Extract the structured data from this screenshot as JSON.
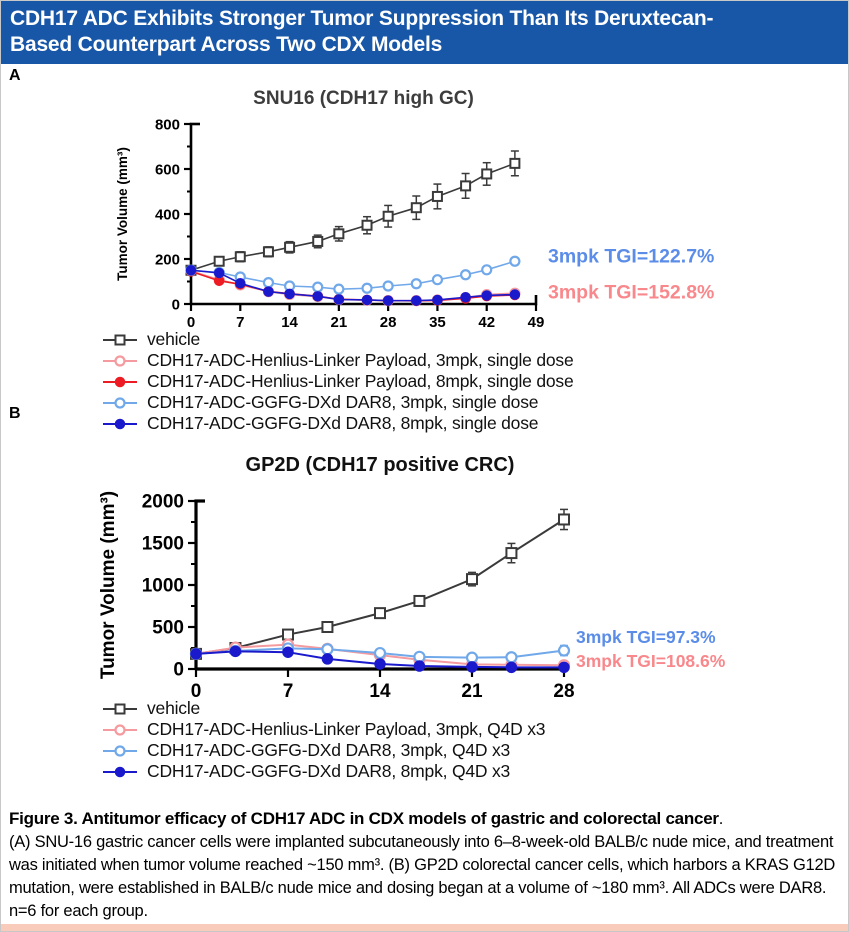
{
  "header": {
    "title_lines": [
      "CDH17 ADC Exhibits Stronger Tumor Suppression Than Its Deruxtecan-",
      "Based Counterpart Across Two CDX Models"
    ],
    "bg_color": "#1857a8",
    "text_color": "#ffffff"
  },
  "panel_labels": {
    "a": "A",
    "b": "B"
  },
  "chart_data": [
    {
      "type": "line",
      "panel": "A",
      "title": "SNU16 (CDH17 high GC)",
      "ylabel": "Tumor Volume (mm³)",
      "xlabel": "",
      "xlim": [
        0,
        49
      ],
      "ylim": [
        0,
        800
      ],
      "xticks": [
        0,
        7,
        14,
        21,
        28,
        35,
        42,
        49
      ],
      "yticks": [
        0,
        200,
        400,
        600,
        800
      ],
      "y_minor_step": 100,
      "grid": false,
      "legend_position": "below",
      "x": [
        0,
        4,
        7,
        11,
        14,
        18,
        21,
        25,
        28,
        32,
        35,
        39,
        42,
        46
      ],
      "series": [
        {
          "name": "vehicle",
          "marker": "square-open",
          "color": "#3a3a3a",
          "values": [
            150,
            190,
            210,
            232,
            252,
            278,
            312,
            350,
            390,
            428,
            478,
            525,
            578,
            625
          ],
          "err": [
            15,
            20,
            22,
            22,
            25,
            28,
            32,
            38,
            48,
            52,
            55,
            55,
            50,
            55
          ]
        },
        {
          "name": "CDH17-ADC-Henlius-Linker Payload, 3mpk, single dose",
          "marker": "circle-open",
          "color": "#f59a9e",
          "values": [
            148,
            108,
            85,
            55,
            42,
            33,
            20,
            17,
            15,
            15,
            18,
            28,
            42,
            48
          ],
          "err": [
            10,
            8,
            8,
            6,
            5,
            4,
            3,
            3,
            3,
            3,
            3,
            4,
            6,
            8
          ]
        },
        {
          "name": "CDH17-ADC-Henlius-Linker Payload, 8mpk, single dose",
          "marker": "circle-filled",
          "color": "#ed1c24",
          "values": [
            145,
            103,
            88,
            56,
            46,
            35,
            21,
            18,
            15,
            14,
            16,
            25,
            35,
            40
          ],
          "err": [
            10,
            8,
            8,
            6,
            5,
            4,
            3,
            3,
            3,
            3,
            3,
            4,
            5,
            6
          ]
        },
        {
          "name": "CDH17-ADC-GGFG-DXd DAR8, 3mpk, single dose",
          "marker": "circle-open",
          "color": "#70a8ea",
          "values": [
            150,
            140,
            120,
            95,
            80,
            75,
            66,
            70,
            80,
            90,
            108,
            130,
            152,
            190
          ],
          "err": [
            10,
            10,
            10,
            8,
            8,
            8,
            8,
            8,
            8,
            8,
            10,
            12,
            12,
            14
          ]
        },
        {
          "name": "CDH17-ADC-GGFG-DXd DAR8, 8mpk, single dose",
          "marker": "circle-filled",
          "color": "#1a1acc",
          "values": [
            150,
            138,
            92,
            55,
            45,
            34,
            20,
            18,
            15,
            15,
            18,
            30,
            38,
            42
          ],
          "err": [
            10,
            8,
            8,
            6,
            5,
            4,
            3,
            3,
            3,
            3,
            3,
            4,
            5,
            6
          ]
        }
      ],
      "annotations": [
        {
          "text": "3mpk TGI=122.7%",
          "color": "#5b8de8",
          "y": 215
        },
        {
          "text": "3mpk TGI=152.8%",
          "color": "#f8888c",
          "y": 55
        }
      ]
    },
    {
      "type": "line",
      "panel": "B",
      "title": "GP2D (CDH17 positive CRC)",
      "ylabel": "Tumor Volume (mm³)",
      "xlabel": "",
      "xlim": [
        0,
        28
      ],
      "ylim": [
        0,
        2000
      ],
      "xticks": [
        0,
        7,
        14,
        21,
        28
      ],
      "yticks": [
        0,
        500,
        1000,
        1500,
        2000
      ],
      "y_minor_step": 250,
      "grid": false,
      "legend_position": "below",
      "x": [
        0,
        3,
        7,
        10,
        14,
        17,
        21,
        24,
        28
      ],
      "series": [
        {
          "name": "vehicle",
          "marker": "square-open",
          "color": "#3a3a3a",
          "values": [
            180,
            250,
            410,
            500,
            665,
            810,
            1070,
            1380,
            1780
          ],
          "err": [
            20,
            25,
            30,
            35,
            45,
            60,
            80,
            115,
            120
          ]
        },
        {
          "name": "CDH17-ADC-Henlius-Linker Payload, 3mpk, Q4D x3",
          "marker": "circle-open",
          "color": "#f59a9e",
          "values": [
            180,
            255,
            290,
            240,
            165,
            110,
            55,
            50,
            45
          ],
          "err": [
            15,
            15,
            20,
            18,
            15,
            12,
            10,
            10,
            10
          ]
        },
        {
          "name": "CDH17-ADC-GGFG-DXd DAR8, 3mpk, Q4D x3",
          "marker": "circle-open",
          "color": "#70a8ea",
          "values": [
            180,
            215,
            245,
            235,
            190,
            145,
            135,
            140,
            220
          ],
          "err": [
            15,
            15,
            18,
            18,
            22,
            28,
            35,
            40,
            60
          ]
        },
        {
          "name": "CDH17-ADC-GGFG-DXd DAR8, 8mpk, Q4D x3",
          "marker": "circle-filled",
          "color": "#1a1acc",
          "values": [
            180,
            210,
            200,
            120,
            60,
            35,
            25,
            20,
            20
          ],
          "err": [
            12,
            12,
            14,
            10,
            8,
            6,
            5,
            5,
            5
          ]
        }
      ],
      "annotations": [
        {
          "text": "3mpk TGI=97.3%",
          "color": "#5b8de8",
          "y": 380
        },
        {
          "text": "3mpk TGI=108.6%",
          "color": "#f8888c",
          "y": 95
        }
      ]
    }
  ],
  "caption": {
    "heading_bold": "Figure 3. Antitumor efficacy of CDH17 ADC in CDX models of gastric and colorectal cancer",
    "heading_tail": ".",
    "body": "(A) SNU-16 gastric cancer cells were implanted subcutaneously into 6–8-week-old BALB/c nude mice, and treatment was initiated when tumor volume reached ~150 mm³. (B) GP2D colorectal cancer cells, which harbors a KRAS G12D mutation, were established in BALB/c nude mice and dosing began at a volume of ~180 mm³. All ADCs were DAR8. n=6 for each group."
  },
  "footer_bar_color": "#f8cbbb"
}
